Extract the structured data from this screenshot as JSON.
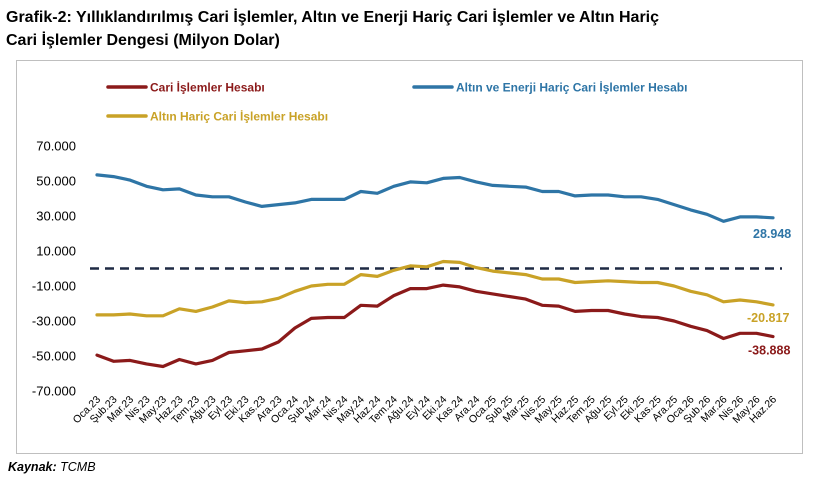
{
  "title_line1": "Grafik-2: Yıllıklandırılmış Cari İşlemler, Altın ve Enerji Hariç Cari İşlemler ve Altın Hariç",
  "title_line2": "Cari İşlemler Dengesi (Milyon Dolar)",
  "source_label": "Kaynak:",
  "source_value": "TCMB",
  "chart_data": {
    "type": "line",
    "title": "Yıllıklandırılmış Cari İşlemler, Altın ve Enerji Hariç Cari İşlemler ve Altın Hariç Cari İşlemler Dengesi (Milyon Dolar)",
    "ylim": [
      -70000,
      70000
    ],
    "yticks": [
      70000,
      50000,
      30000,
      10000,
      -10000,
      -30000,
      -50000,
      -70000
    ],
    "ytick_labels": [
      "70.000",
      "50.000",
      "30.000",
      "10.000",
      "-10.000",
      "-30.000",
      "-50.000",
      "-70.000"
    ],
    "reference_line": 0,
    "grid": false,
    "legend_position": "top",
    "categories": [
      "Oca.23",
      "Şub.23",
      "Mar.23",
      "Nis.23",
      "May.23",
      "Haz.23",
      "Tem.23",
      "Ağu.23",
      "Eyl.23",
      "Eki.23",
      "Kas.23",
      "Ara.23",
      "Oca.24",
      "Şub.24",
      "Mar.24",
      "Nis.24",
      "May.24",
      "Haz.24",
      "Tem.24",
      "Ağu.24",
      "Eyl.24",
      "Eki.24",
      "Kas.24",
      "Ara.24",
      "Oca.25",
      "Şub.25",
      "Mar.25",
      "Nis.25",
      "May.25",
      "Haz.25",
      "Tem.25",
      "Ağu.25",
      "Eyl.25",
      "Eki.25",
      "Kas.25",
      "Ara.25",
      "Oca.26",
      "Şub.26",
      "Mar.26",
      "Nis.26",
      "May.26",
      "Haz.26"
    ],
    "series": [
      {
        "name": "Cari İşlemler Hesabı",
        "color": "#8b1a1a",
        "values": [
          -49500,
          -53000,
          -52500,
          -54500,
          -56000,
          -52000,
          -54500,
          -52500,
          -48000,
          -47000,
          -46000,
          -42000,
          -34000,
          -28500,
          -28000,
          -28000,
          -21000,
          -21500,
          -15500,
          -11500,
          -11500,
          -9500,
          -10500,
          -13000,
          -14500,
          -16000,
          -17500,
          -21000,
          -21500,
          -24500,
          -24000,
          -24000,
          -26000,
          -27500,
          -28000,
          -30000,
          -33000,
          -35500,
          -40000,
          -37000,
          -37000,
          -38888
        ],
        "end_label": "-38.888"
      },
      {
        "name": "Altın ve Enerji Hariç Cari İşlemler Hesabı",
        "color": "#2e75a6",
        "values": [
          53500,
          52500,
          50500,
          47000,
          45000,
          45500,
          42000,
          41000,
          41000,
          38000,
          35500,
          36500,
          37500,
          39500,
          39500,
          39500,
          44000,
          43000,
          47000,
          49500,
          49000,
          51500,
          52000,
          49500,
          47500,
          47000,
          46500,
          44000,
          44000,
          41500,
          42000,
          42000,
          41000,
          41000,
          39500,
          36500,
          33500,
          31000,
          27000,
          29500,
          29500,
          28948
        ],
        "end_label": "28.948"
      },
      {
        "name": "Altın Hariç Cari İşlemler Hesabı",
        "color": "#c9a227",
        "values": [
          -26500,
          -26500,
          -26000,
          -27000,
          -27000,
          -23000,
          -24500,
          -22000,
          -18500,
          -19500,
          -19000,
          -17000,
          -13000,
          -10000,
          -9000,
          -9000,
          -3500,
          -4500,
          -1000,
          1500,
          1000,
          4000,
          3500,
          500,
          -1500,
          -2500,
          -3500,
          -6000,
          -6000,
          -8000,
          -7500,
          -7000,
          -7500,
          -8000,
          -8000,
          -10000,
          -13000,
          -15000,
          -19000,
          -18000,
          -19000,
          -20817
        ],
        "end_label": "-20.817"
      }
    ]
  }
}
